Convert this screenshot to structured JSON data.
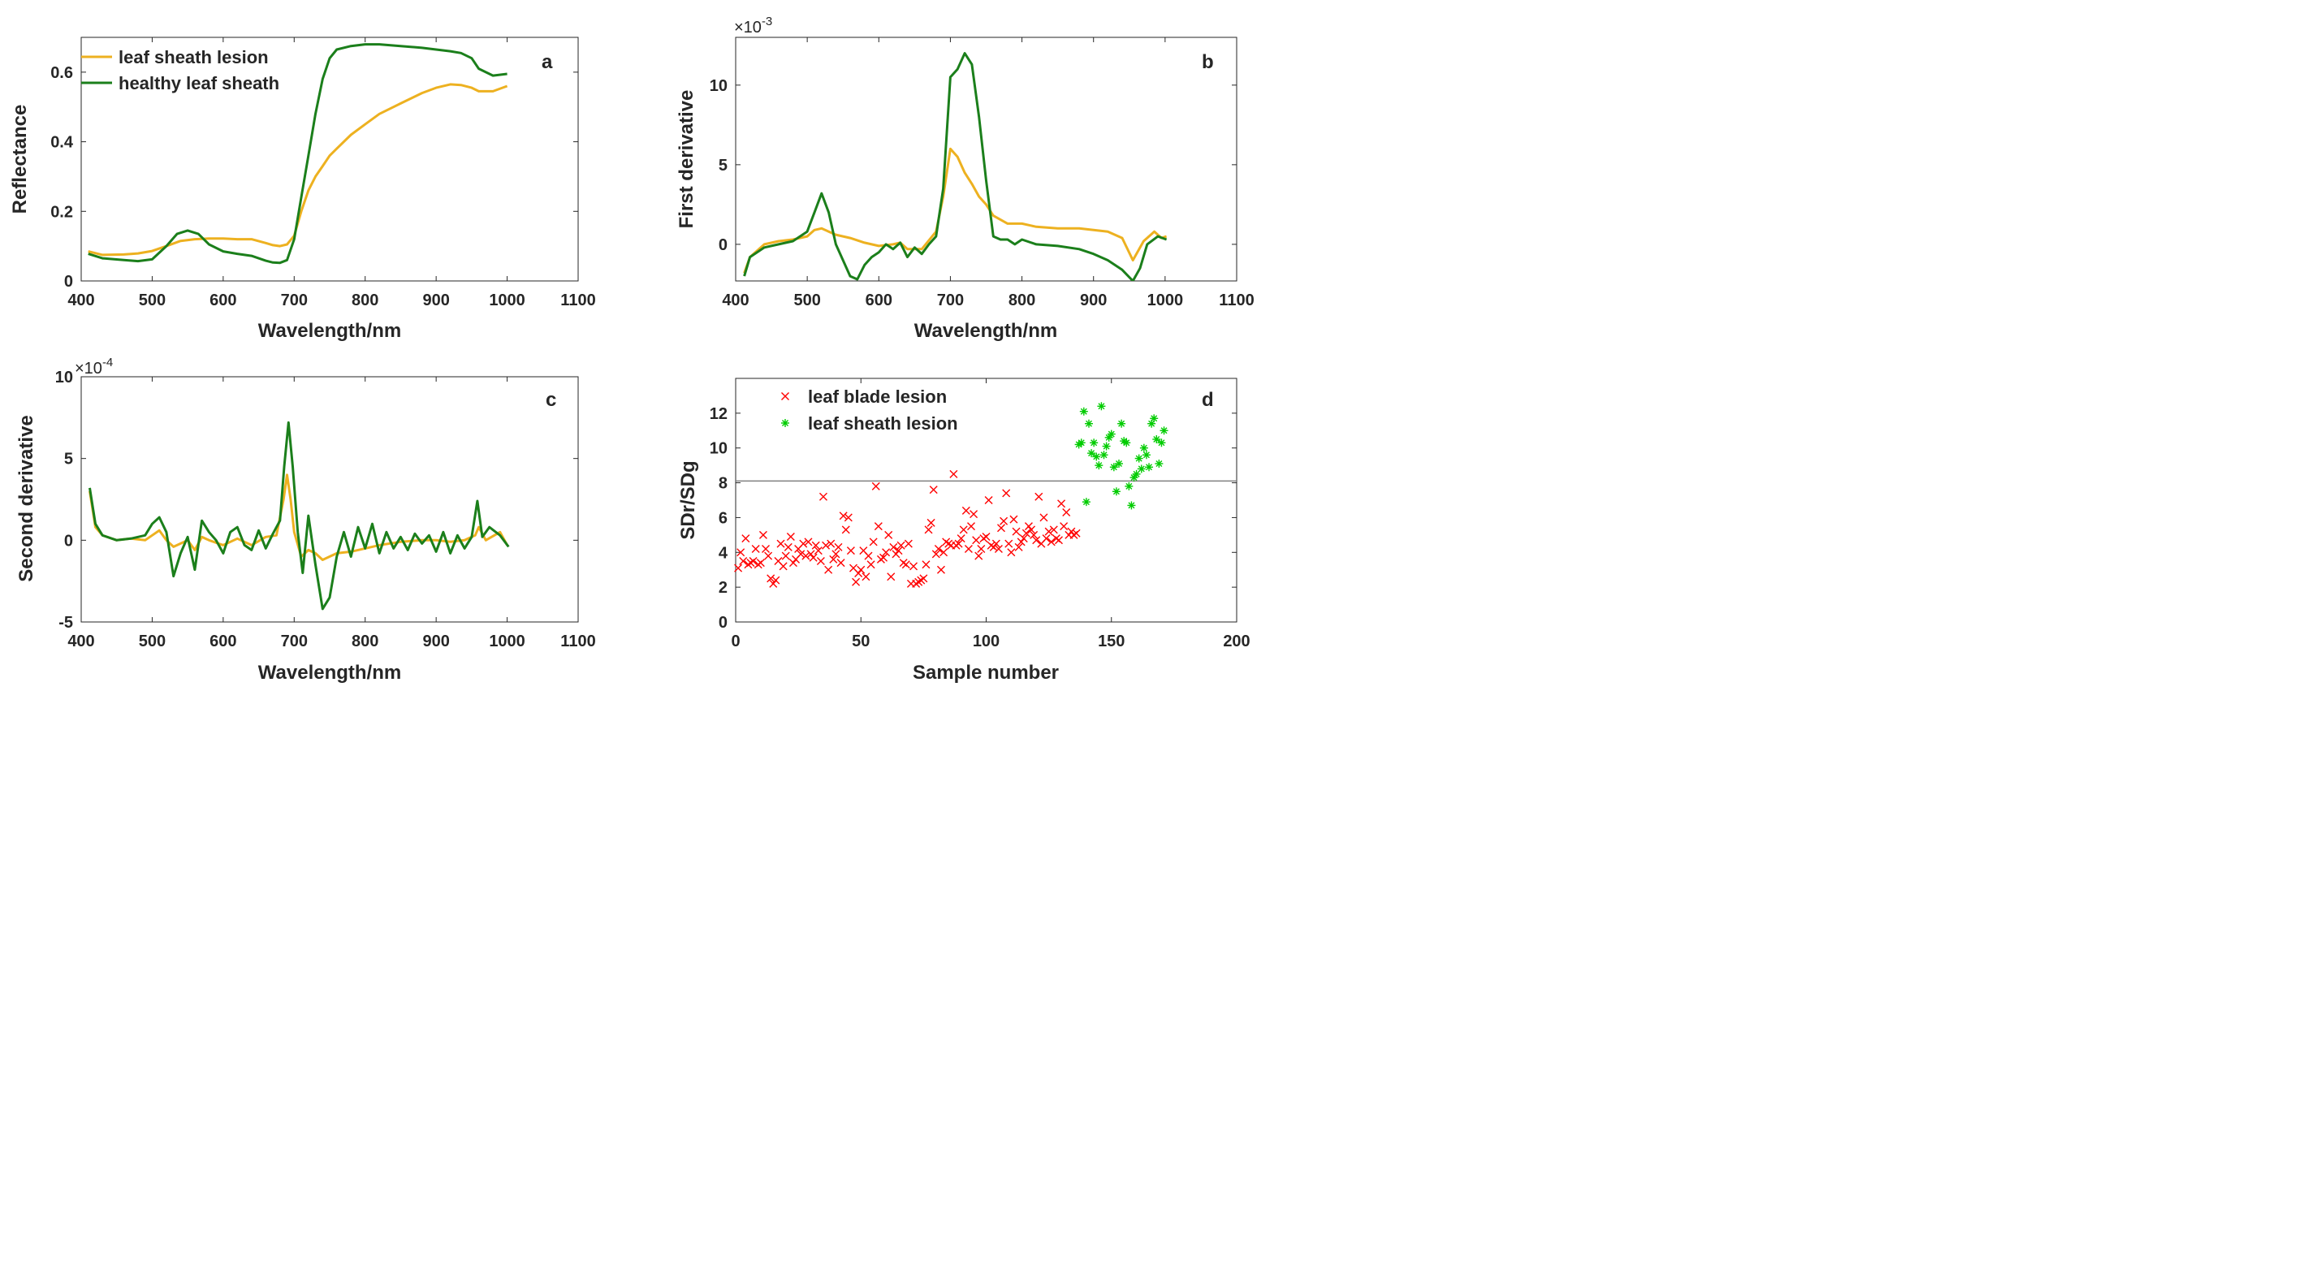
{
  "colors": {
    "lesion": "#EDB120",
    "healthy": "#1B7F1B",
    "blade_marker": "#FF0000",
    "sheath_marker": "#00CC00",
    "axis": "#262626",
    "threshold_line": "#808080"
  },
  "chart_data": [
    {
      "panel": "a",
      "type": "line",
      "xlabel": "Wavelength/nm",
      "ylabel": "Reflectance",
      "xlim": [
        400,
        1100
      ],
      "ylim": [
        0,
        0.7
      ],
      "xticks": [
        "400",
        "500",
        "600",
        "700",
        "800",
        "900",
        "1000",
        "1100"
      ],
      "yticks": [
        "0",
        "0.2",
        "0.4",
        "0.6"
      ],
      "legend": "top-left",
      "series": [
        {
          "name": "leaf sheath lesion",
          "color_key": "lesion",
          "x": [
            410,
            430,
            460,
            480,
            500,
            520,
            540,
            560,
            580,
            600,
            620,
            640,
            660,
            670,
            680,
            690,
            700,
            710,
            720,
            730,
            740,
            750,
            760,
            780,
            800,
            820,
            850,
            880,
            900,
            920,
            935,
            950,
            960,
            980,
            1000
          ],
          "y": [
            0.085,
            0.075,
            0.076,
            0.079,
            0.086,
            0.1,
            0.115,
            0.12,
            0.122,
            0.122,
            0.12,
            0.12,
            0.109,
            0.103,
            0.1,
            0.105,
            0.13,
            0.2,
            0.26,
            0.3,
            0.33,
            0.36,
            0.38,
            0.42,
            0.45,
            0.48,
            0.51,
            0.54,
            0.555,
            0.565,
            0.563,
            0.555,
            0.545,
            0.545,
            0.56
          ]
        },
        {
          "name": "healthy leaf sheath",
          "color_key": "healthy",
          "x": [
            410,
            430,
            460,
            480,
            500,
            520,
            535,
            550,
            565,
            580,
            600,
            620,
            640,
            660,
            670,
            680,
            690,
            700,
            710,
            720,
            730,
            740,
            750,
            760,
            780,
            800,
            820,
            850,
            880,
            900,
            920,
            935,
            950,
            960,
            980,
            1000
          ],
          "y": [
            0.078,
            0.065,
            0.06,
            0.057,
            0.062,
            0.1,
            0.135,
            0.145,
            0.135,
            0.105,
            0.085,
            0.078,
            0.072,
            0.058,
            0.053,
            0.052,
            0.06,
            0.12,
            0.24,
            0.36,
            0.48,
            0.58,
            0.64,
            0.665,
            0.675,
            0.68,
            0.68,
            0.675,
            0.67,
            0.665,
            0.66,
            0.655,
            0.64,
            0.61,
            0.59,
            0.595
          ]
        }
      ]
    },
    {
      "panel": "b",
      "type": "line",
      "xlabel": "Wavelength/nm",
      "ylabel": "First derivative",
      "exponent": "×10",
      "exponent_power": "-3",
      "xlim": [
        400,
        1100
      ],
      "ylim": [
        -2.3,
        13
      ],
      "xticks": [
        "400",
        "500",
        "600",
        "700",
        "800",
        "900",
        "1000",
        "1100"
      ],
      "yticks": [
        "0",
        "5",
        "10"
      ],
      "series": [
        {
          "color_key": "lesion",
          "x": [
            412,
            420,
            440,
            460,
            480,
            500,
            510,
            520,
            530,
            540,
            560,
            580,
            600,
            620,
            630,
            640,
            660,
            680,
            690,
            700,
            710,
            720,
            730,
            740,
            750,
            760,
            780,
            800,
            820,
            850,
            880,
            900,
            920,
            940,
            955,
            970,
            985,
            995,
            1002
          ],
          "y": [
            -1.8,
            -0.8,
            0.0,
            0.2,
            0.3,
            0.5,
            0.9,
            1.0,
            0.8,
            0.6,
            0.4,
            0.1,
            -0.1,
            0.0,
            0.1,
            -0.3,
            -0.3,
            0.8,
            3.0,
            6.0,
            5.5,
            4.5,
            3.8,
            3.0,
            2.5,
            1.8,
            1.3,
            1.3,
            1.1,
            1.0,
            1.0,
            0.9,
            0.8,
            0.4,
            -1.0,
            0.2,
            0.8,
            0.4,
            0.5
          ]
        },
        {
          "color_key": "healthy",
          "x": [
            412,
            420,
            440,
            460,
            480,
            500,
            510,
            520,
            530,
            540,
            550,
            560,
            570,
            580,
            590,
            600,
            610,
            620,
            630,
            640,
            650,
            660,
            670,
            680,
            690,
            700,
            710,
            720,
            730,
            740,
            750,
            760,
            770,
            780,
            790,
            800,
            820,
            850,
            880,
            900,
            920,
            940,
            955,
            965,
            975,
            990,
            1002
          ],
          "y": [
            -2.0,
            -0.8,
            -0.2,
            0.0,
            0.2,
            0.8,
            2.0,
            3.2,
            2.0,
            0.0,
            -1.0,
            -2.0,
            -2.2,
            -1.3,
            -0.8,
            -0.5,
            0.0,
            -0.3,
            0.1,
            -0.8,
            -0.2,
            -0.6,
            0.0,
            0.5,
            3.5,
            10.5,
            11.0,
            12.0,
            11.3,
            8.0,
            4.0,
            0.5,
            0.3,
            0.3,
            0.0,
            0.3,
            0.0,
            -0.1,
            -0.3,
            -0.6,
            -1.0,
            -1.6,
            -2.3,
            -1.5,
            0.0,
            0.5,
            0.3
          ]
        }
      ]
    },
    {
      "panel": "c",
      "type": "line",
      "xlabel": "Wavelength/nm",
      "ylabel": "Second derivative",
      "exponent": "×10",
      "exponent_power": "-4",
      "xlim": [
        400,
        1100
      ],
      "ylim": [
        -5,
        10
      ],
      "xticks": [
        "400",
        "500",
        "600",
        "700",
        "800",
        "900",
        "1000",
        "1100"
      ],
      "yticks": [
        "-5",
        "0",
        "5",
        "10"
      ],
      "series": [
        {
          "color_key": "lesion",
          "x": [
            412,
            420,
            430,
            450,
            470,
            490,
            500,
            510,
            520,
            530,
            540,
            550,
            560,
            570,
            580,
            600,
            620,
            640,
            660,
            675,
            685,
            690,
            695,
            700,
            710,
            720,
            730,
            740,
            760,
            780,
            800,
            820,
            850,
            880,
            900,
            920,
            940,
            955,
            960,
            970,
            990,
            1000
          ],
          "y": [
            3.0,
            0.8,
            0.3,
            0.0,
            0.1,
            0.0,
            0.3,
            0.6,
            0.0,
            -0.4,
            -0.2,
            0.0,
            -0.6,
            0.2,
            0.0,
            -0.3,
            0.1,
            -0.3,
            0.2,
            0.3,
            2.5,
            4.0,
            2.5,
            0.5,
            -1.0,
            -0.6,
            -0.8,
            -1.2,
            -0.8,
            -0.7,
            -0.5,
            -0.3,
            -0.1,
            0.0,
            0.0,
            -0.1,
            0.0,
            0.3,
            0.8,
            0.0,
            0.5,
            -0.3
          ]
        },
        {
          "color_key": "healthy",
          "x": [
            412,
            420,
            430,
            450,
            470,
            490,
            500,
            510,
            520,
            530,
            540,
            550,
            560,
            570,
            580,
            590,
            600,
            610,
            620,
            630,
            640,
            650,
            660,
            670,
            680,
            686,
            692,
            698,
            705,
            712,
            720,
            730,
            740,
            750,
            760,
            770,
            780,
            790,
            800,
            810,
            820,
            830,
            840,
            850,
            860,
            870,
            880,
            890,
            900,
            910,
            920,
            930,
            940,
            950,
            958,
            965,
            975,
            990,
            1002
          ],
          "y": [
            3.2,
            1.0,
            0.3,
            0.0,
            0.1,
            0.3,
            1.0,
            1.4,
            0.5,
            -2.2,
            -0.8,
            0.2,
            -1.8,
            1.2,
            0.5,
            0.0,
            -0.8,
            0.5,
            0.8,
            -0.3,
            -0.6,
            0.6,
            -0.5,
            0.4,
            1.2,
            4.5,
            7.2,
            4.5,
            0.5,
            -2.0,
            1.5,
            -1.5,
            -4.2,
            -3.5,
            -1.0,
            0.5,
            -1.0,
            0.8,
            -0.5,
            1.0,
            -0.8,
            0.5,
            -0.5,
            0.2,
            -0.6,
            0.4,
            -0.2,
            0.3,
            -0.7,
            0.5,
            -0.8,
            0.3,
            -0.5,
            0.2,
            2.4,
            0.2,
            0.8,
            0.3,
            -0.4
          ]
        }
      ]
    },
    {
      "panel": "d",
      "type": "scatter",
      "xlabel": "Sample number",
      "ylabel": "SDr/SDg",
      "xlim": [
        0,
        200
      ],
      "ylim": [
        0,
        14
      ],
      "xticks": [
        "0",
        "50",
        "100",
        "150",
        "200"
      ],
      "yticks": [
        "0",
        "2",
        "4",
        "6",
        "8",
        "10",
        "12"
      ],
      "threshold": 8.1,
      "legend": "top-left",
      "series": [
        {
          "name": "leaf blade lesion",
          "marker": "x",
          "color_key": "blade_marker",
          "x": [
            1,
            2,
            3,
            4,
            5,
            6,
            7,
            8,
            9,
            10,
            11,
            12,
            13,
            14,
            15,
            16,
            17,
            18,
            19,
            20,
            21,
            22,
            23,
            24,
            25,
            26,
            27,
            28,
            29,
            30,
            31,
            32,
            33,
            34,
            35,
            36,
            37,
            38,
            39,
            40,
            41,
            42,
            43,
            44,
            45,
            46,
            47,
            48,
            49,
            50,
            51,
            52,
            53,
            54,
            55,
            56,
            57,
            58,
            59,
            60,
            61,
            62,
            63,
            64,
            65,
            66,
            67,
            68,
            69,
            70,
            71,
            72,
            73,
            74,
            75,
            76,
            77,
            78,
            79,
            80,
            81,
            82,
            83,
            84,
            85,
            86,
            87,
            88,
            89,
            90,
            91,
            92,
            93,
            94,
            95,
            96,
            97,
            98,
            99,
            100,
            101,
            102,
            103,
            104,
            105,
            106,
            107,
            108,
            109,
            110,
            111,
            112,
            113,
            114,
            115,
            116,
            117,
            118,
            119,
            120,
            121,
            122,
            123,
            124,
            125,
            126,
            127,
            128,
            129,
            130,
            131,
            132,
            133,
            134,
            135,
            136
          ],
          "y": [
            3.1,
            4.0,
            3.5,
            4.8,
            3.3,
            3.4,
            3.5,
            4.2,
            3.3,
            3.4,
            5.0,
            4.2,
            3.8,
            2.5,
            2.2,
            2.4,
            3.5,
            4.5,
            3.2,
            3.8,
            4.3,
            4.9,
            3.4,
            3.6,
            4.2,
            3.9,
            4.5,
            3.8,
            4.6,
            3.9,
            3.7,
            4.4,
            4.1,
            3.5,
            7.2,
            4.4,
            3.0,
            4.5,
            3.6,
            3.9,
            4.3,
            3.4,
            6.1,
            5.3,
            6.0,
            4.1,
            3.1,
            2.3,
            2.8,
            3.0,
            4.1,
            2.6,
            3.8,
            3.3,
            4.6,
            7.8,
            5.5,
            3.6,
            3.7,
            4.0,
            5.0,
            2.6,
            4.3,
            3.9,
            4.1,
            4.4,
            3.4,
            3.3,
            4.5,
            2.2,
            3.2,
            2.2,
            2.3,
            2.4,
            2.5,
            3.3,
            5.3,
            5.7,
            7.6,
            3.9,
            4.2,
            3.0,
            4.0,
            4.6,
            4.5,
            4.4,
            8.5,
            4.4,
            4.5,
            4.8,
            5.3,
            6.4,
            4.2,
            5.5,
            6.2,
            4.7,
            3.8,
            4.2,
            4.8,
            4.9,
            7.0,
            4.4,
            4.3,
            4.5,
            4.2,
            5.4,
            5.8,
            7.4,
            4.5,
            4.0,
            5.9,
            5.2,
            4.3,
            4.6,
            4.8,
            5.1,
            5.5,
            5.3,
            5.0,
            4.7,
            7.2,
            4.5,
            6.0,
            4.8,
            5.2,
            4.6,
            5.3,
            4.8,
            4.7,
            6.8,
            5.5,
            6.3,
            5.0,
            5.2,
            5.0,
            5.1
          ]
        },
        {
          "name": "leaf sheath lesion",
          "marker": "*",
          "color_key": "sheath_marker",
          "x": [
            137,
            138,
            139,
            140,
            141,
            142,
            143,
            144,
            145,
            146,
            147,
            148,
            149,
            150,
            151,
            152,
            153,
            154,
            155,
            156,
            157,
            158,
            159,
            160,
            161,
            162,
            163,
            164,
            165,
            166,
            167,
            168,
            169,
            170,
            171
          ],
          "y": [
            10.2,
            10.3,
            12.1,
            6.9,
            11.4,
            9.7,
            10.3,
            9.5,
            9.0,
            12.4,
            9.6,
            10.1,
            10.6,
            10.8,
            8.9,
            7.5,
            9.1,
            11.4,
            10.4,
            10.3,
            7.8,
            6.7,
            8.3,
            8.5,
            9.4,
            8.8,
            10.0,
            9.6,
            8.9,
            11.4,
            11.7,
            10.5,
            9.1,
            10.3,
            11.0
          ]
        }
      ]
    }
  ]
}
